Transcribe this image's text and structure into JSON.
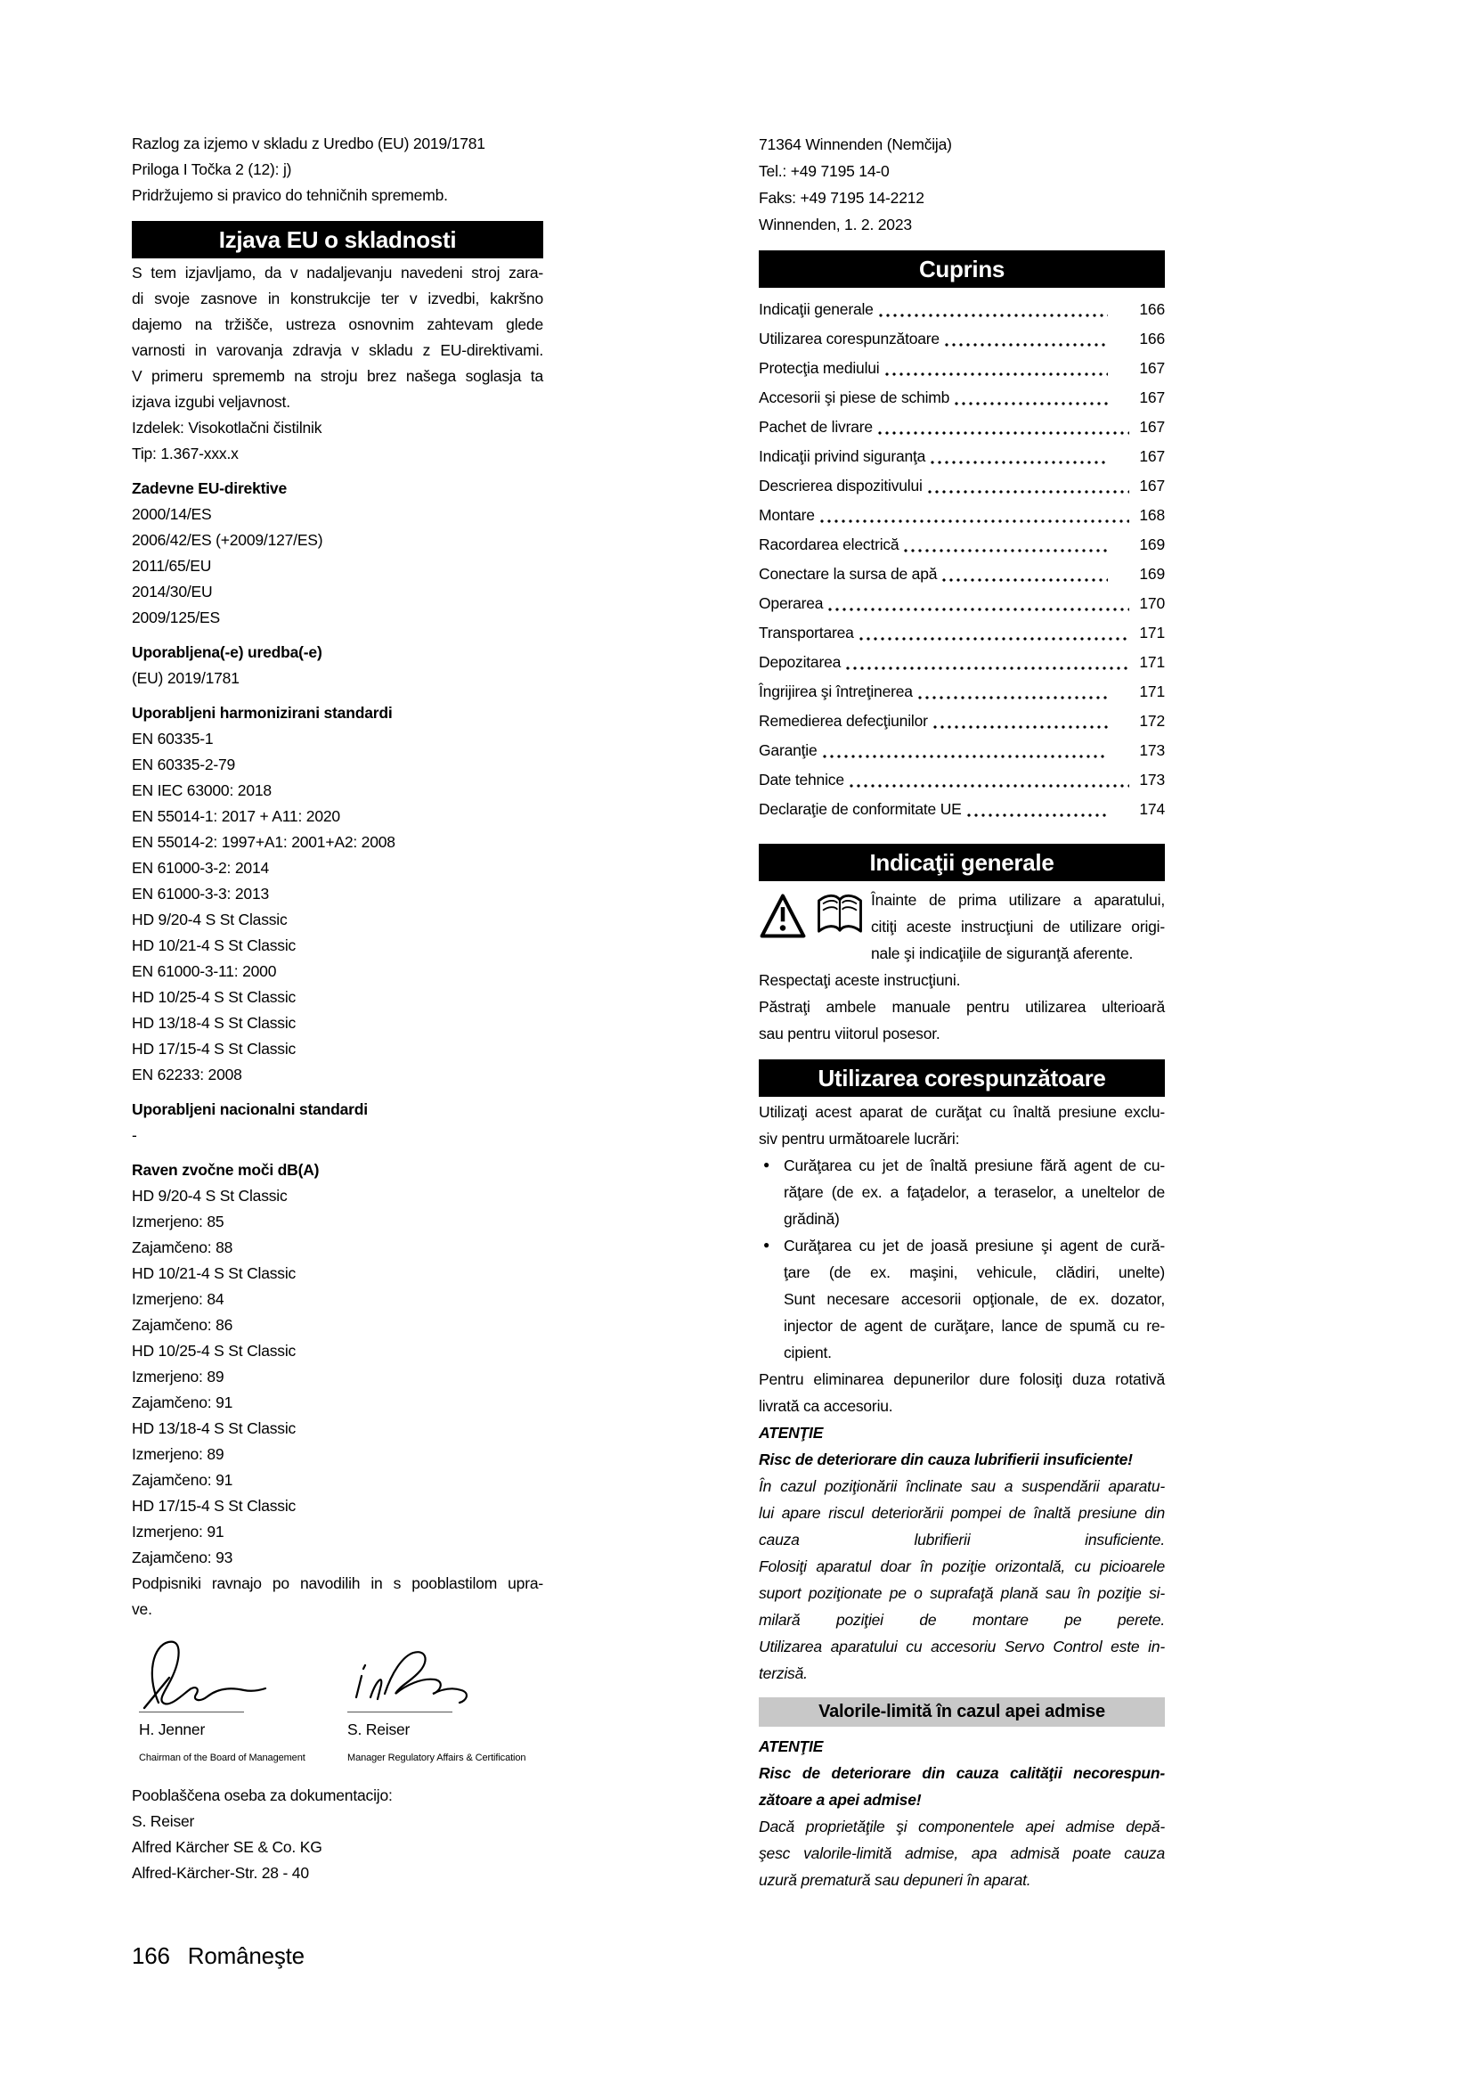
{
  "left_column": {
    "intro_lines": [
      "Razlog za izjemo v skladu z Uredbo (EU) 2019/1781",
      "Priloga I Točka 2 (12): j)",
      "Pridržujemo si pravico do tehničnih sprememb."
    ],
    "declaration_header": "Izjava EU o skladnosti",
    "declaration_lines": [
      "S tem izjavljamo, da v nadaljevanju navedeni stroj zara-",
      "di svoje zasnove in konstrukcije ter v izvedbi, kakršno",
      "dajemo na tržišče, ustreza osnovnim zahtevam glede",
      "varnosti in varovanja zdravja v skladu z EU-direktivami.",
      "V primeru sprememb na stroju brez našega soglasja ta",
      "izjava izgubi veljavnost."
    ],
    "product_line": "Izdelek: Visokotlačni čistilnik",
    "type_line": "Tip: 1.367-xxx.x",
    "sections": [
      {
        "heading": "Zadevne EU-direktive",
        "lines": [
          "2000/14/ES",
          "2006/42/ES (+2009/127/ES)",
          "2011/65/EU",
          "2014/30/EU",
          "2009/125/ES"
        ]
      },
      {
        "heading": "Uporabljena(-e) uredba(-e)",
        "lines": [
          "(EU) 2019/1781"
        ]
      },
      {
        "heading": "Uporabljeni harmonizirani standardi",
        "lines": [
          "EN 60335-1",
          "EN 60335-2-79",
          "EN IEC 63000: 2018",
          "EN 55014-1: 2017 + A11: 2020",
          "EN 55014-2: 1997+A1: 2001+A2: 2008",
          "EN 61000-3-2: 2014",
          "EN 61000-3-3: 2013",
          "HD 9/20-4 S St Classic",
          "HD 10/21-4 S St Classic",
          "EN 61000-3-11: 2000",
          "HD 10/25-4 S St Classic",
          "HD 13/18-4 S St Classic",
          "HD 17/15-4 S St Classic",
          "EN 62233: 2008"
        ]
      },
      {
        "heading": "Uporabljeni nacionalni standardi",
        "lines": [
          "-"
        ]
      },
      {
        "heading": "Raven zvočne moči dB(A)",
        "lines": [
          "HD 9/20-4 S St Classic",
          "Izmerjeno: 85",
          "Zajamčeno: 88",
          "HD 10/21-4 S St Classic",
          "Izmerjeno: 84",
          "Zajamčeno: 86",
          "HD 10/25-4 S St Classic",
          "Izmerjeno: 89",
          "Zajamčeno: 91",
          "HD 13/18-4 S St Classic",
          "Izmerjeno: 89",
          "Zajamčeno: 91",
          "HD 17/15-4 S St Classic",
          "Izmerjeno: 91",
          "Zajamčeno: 93"
        ]
      }
    ],
    "signing_note_lines": [
      "Podpisniki ravnajo po navodilih in s pooblastilom upra-",
      "ve."
    ],
    "signatures": [
      {
        "name": "H. Jenner",
        "title": "Chairman of the Board of Management"
      },
      {
        "name": "S. Reiser",
        "title": "Manager Regulatory Affairs & Certification"
      }
    ],
    "documentation_lines": [
      "Pooblaščena oseba za dokumentacijo:",
      "S. Reiser",
      "Alfred Kärcher SE & Co. KG",
      "Alfred-Kärcher-Str. 28 - 40"
    ]
  },
  "right_column": {
    "contact_lines": [
      "71364 Winnenden (Nemčija)",
      "Tel.: +49 7195 14-0",
      "Faks: +49 7195 14-2212",
      "Winnenden, 1. 2. 2023"
    ],
    "toc_header": "Cuprins",
    "toc": [
      {
        "label": "Indicaţii generale",
        "page": "166",
        "num_align": "far"
      },
      {
        "label": "Utilizarea corespunzătoare",
        "page": "166",
        "num_align": "far"
      },
      {
        "label": "Protecţia mediului",
        "page": "167",
        "num_align": "far"
      },
      {
        "label": "Accesorii şi piese de schimb",
        "page": "167",
        "num_align": "far"
      },
      {
        "label": "Pachet de livrare",
        "page": "167",
        "num_align": "near"
      },
      {
        "label": "Indicaţii privind siguranţa",
        "page": "167",
        "num_align": "far"
      },
      {
        "label": "Descrierea dispozitivului",
        "page": "167",
        "num_align": "near"
      },
      {
        "label": "Montare",
        "page": "168",
        "num_align": "near"
      },
      {
        "label": "Racordarea electrică",
        "page": "169",
        "num_align": "far"
      },
      {
        "label": "Conectare la sursa de apă",
        "page": "169",
        "num_align": "far"
      },
      {
        "label": "Operarea",
        "page": "170",
        "num_align": "near"
      },
      {
        "label": "Transportarea",
        "page": "171",
        "num_align": "near"
      },
      {
        "label": "Depozitarea",
        "page": "171",
        "num_align": "near"
      },
      {
        "label": "Îngrijirea şi întreţinerea",
        "page": "171",
        "num_align": "far"
      },
      {
        "label": "Remedierea defecţiunilor",
        "page": "172",
        "num_align": "far"
      },
      {
        "label": "Garanţie",
        "page": "173",
        "num_align": "far"
      },
      {
        "label": "Date tehnice",
        "page": "173",
        "num_align": "near"
      },
      {
        "label": "Declaraţie de conformitate UE",
        "page": "174",
        "num_align": "far"
      }
    ],
    "general_header": "Indicaţii generale",
    "icon_note_lines": [
      "Înainte de prima utilizare a aparatului,",
      "citiţi aceste instrucţiuni de utilizare origi-",
      "nale şi indicaţiile de siguranţă aferente."
    ],
    "respect_line": "Respectaţi aceste instrucţiuni.",
    "keep_manual_lines": [
      "Păstraţi ambele manuale pentru utilizarea ulterioară",
      "sau pentru viitorul posesor."
    ],
    "usage_header": "Utilizarea corespunzătoare",
    "usage_intro_lines": [
      "Utilizaţi acest aparat de curăţat cu înaltă presiune exclu-",
      "siv pentru următoarele lucrări:"
    ],
    "bullet_char": "●",
    "bullets": [
      {
        "lines": [
          "Curăţarea cu jet de înaltă presiune fără agent de cu-",
          "răţare (de ex. a faţadelor, a teraselor, a uneltelor de",
          "grădină)"
        ]
      },
      {
        "lines": [
          "Curăţarea cu jet de joasă presiune şi agent de cură-",
          "ţare (de ex. maşini, vehicule, clădiri, unelte)",
          "Sunt necesare accesorii opţionale, de ex. dozator,",
          "injector de agent de curăţare, lance de spumă cu re-",
          "cipient."
        ]
      }
    ],
    "usage_note_lines": [
      "Pentru eliminarea depunerilor dure folosiţi duza rotativă",
      "livrată ca accesoriu."
    ],
    "attention1": {
      "label": "ATENŢIE",
      "bold_lines": [
        "Risc de deteriorare din cauza lubrifierii insuficiente!"
      ],
      "italic_lines": [
        "În cazul poziţionării înclinate sau a suspendării aparatu-",
        "lui apare riscul deteriorării pompei de înaltă presiune din",
        "cauza lubrifierii insuficiente.",
        "Folosiţi aparatul doar în poziţie orizontală, cu picioarele",
        "suport poziţionate pe o suprafaţă plană sau în poziţie si-",
        "milară poziţiei de montare pe perete.",
        "Utilizarea aparatului cu accesoriu Servo Control este in-",
        "terzisă."
      ]
    },
    "limits_header": "Valorile-limită în cazul apei admise",
    "attention2": {
      "label": "ATENŢIE",
      "bold_lines": [
        "Risc de deteriorare din cauza calităţii necorespun-",
        "zătoare a apei admise!"
      ],
      "italic_lines": [
        "Dacă proprietăţile şi componentele apei admise depă-",
        "şesc valorile-limită admise, apa admisă poate cauza",
        "uzură prematură sau depuneri în aparat."
      ]
    }
  },
  "footer": {
    "page_number": "166",
    "language": "Româneşte"
  }
}
